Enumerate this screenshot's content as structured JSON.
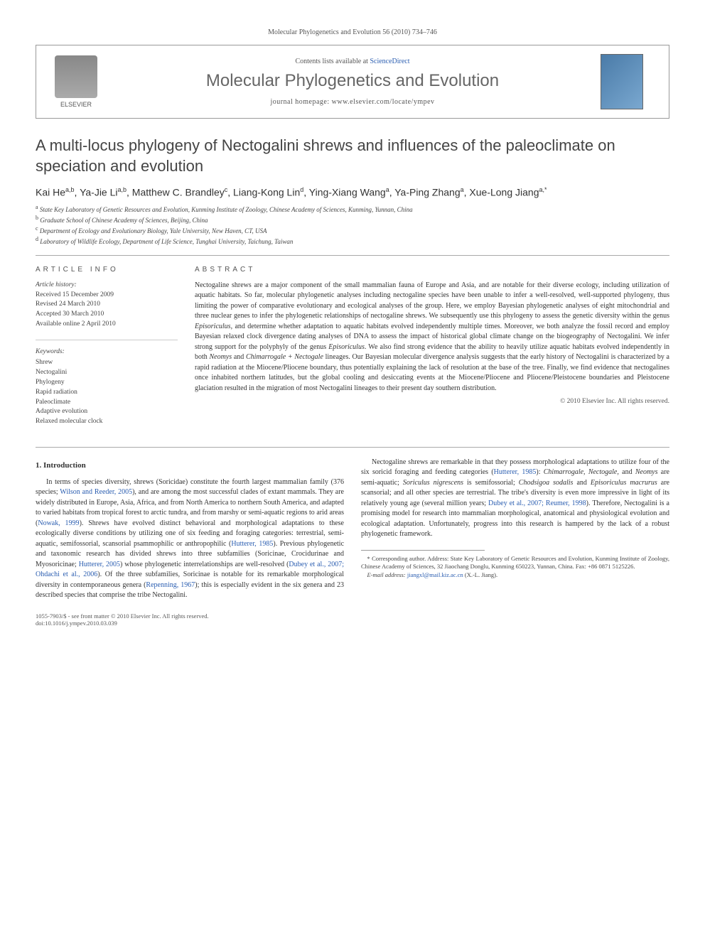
{
  "header": {
    "citation": "Molecular Phylogenetics and Evolution 56 (2010) 734–746"
  },
  "journalBox": {
    "publisher": "ELSEVIER",
    "contentsPrefix": "Contents lists available at ",
    "contentsLink": "ScienceDirect",
    "journalTitle": "Molecular Phylogenetics and Evolution",
    "homepage": "journal homepage: www.elsevier.com/locate/ympev"
  },
  "article": {
    "title": "A multi-locus phylogeny of Nectogalini shrews and influences of the paleoclimate on speciation and evolution",
    "authorsHtml": "Kai He<sup>a,b</sup>, Ya-Jie Li<sup>a,b</sup>, Matthew C. Brandley<sup>c</sup>, Liang-Kong Lin<sup>d</sup>, Ying-Xiang Wang<sup>a</sup>, Ya-Ping Zhang<sup>a</sup>, Xue-Long Jiang<sup>a,*</sup>",
    "affiliations": [
      {
        "sup": "a",
        "text": "State Key Laboratory of Genetic Resources and Evolution, Kunming Institute of Zoology, Chinese Academy of Sciences, Kunming, Yunnan, China"
      },
      {
        "sup": "b",
        "text": "Graduate School of Chinese Academy of Sciences, Beijing, China"
      },
      {
        "sup": "c",
        "text": "Department of Ecology and Evolutionary Biology, Yale University, New Haven, CT, USA"
      },
      {
        "sup": "d",
        "text": "Laboratory of Wildlife Ecology, Department of Life Science, Tunghai University, Taichung, Taiwan"
      }
    ]
  },
  "info": {
    "headLeft": "ARTICLE INFO",
    "headRight": "ABSTRACT",
    "historyLabel": "Article history:",
    "history": [
      "Received 15 December 2009",
      "Revised 24 March 2010",
      "Accepted 30 March 2010",
      "Available online 2 April 2010"
    ],
    "keywordsLabel": "Keywords:",
    "keywords": [
      "Shrew",
      "Nectogalini",
      "Phylogeny",
      "Rapid radiation",
      "Paleoclimate",
      "Adaptive evolution",
      "Relaxed molecular clock"
    ]
  },
  "abstract": {
    "text": "Nectogaline shrews are a major component of the small mammalian fauna of Europe and Asia, and are notable for their diverse ecology, including utilization of aquatic habitats. So far, molecular phylogenetic analyses including nectogaline species have been unable to infer a well-resolved, well-supported phylogeny, thus limiting the power of comparative evolutionary and ecological analyses of the group. Here, we employ Bayesian phylogenetic analyses of eight mitochondrial and three nuclear genes to infer the phylogenetic relationships of nectogaline shrews. We subsequently use this phylogeny to assess the genetic diversity within the genus <em>Episoriculus</em>, and determine whether adaptation to aquatic habitats evolved independently multiple times. Moreover, we both analyze the fossil record and employ Bayesian relaxed clock divergence dating analyses of DNA to assess the impact of historical global climate change on the biogeography of Nectogalini. We infer strong support for the polyphyly of the genus <em>Episoriculus</em>. We also find strong evidence that the ability to heavily utilize aquatic habitats evolved independently in both <em>Neomys</em> and <em>Chimarrogale + Nectogale</em> lineages. Our Bayesian molecular divergence analysis suggests that the early history of Nectogalini is characterized by a rapid radiation at the Miocene/Pliocene boundary, thus potentially explaining the lack of resolution at the base of the tree. Finally, we find evidence that nectogalines once inhabited northern latitudes, but the global cooling and desiccating events at the Miocene/Pliocene and Pliocene/Pleistocene boundaries and Pleistocene glaciation resulted in the migration of most Nectogalini lineages to their present day southern distribution.",
    "copyright": "© 2010 Elsevier Inc. All rights reserved."
  },
  "body": {
    "sectionHead": "1. Introduction",
    "p1a": "In terms of species diversity, shrews (Soricidae) constitute the fourth largest mammalian family (376 species; ",
    "p1link1": "Wilson and Reeder, 2005",
    "p1b": "), and are among the most successful clades of extant mammals. They are widely distributed in Europe, Asia, Africa, and from North America to northern South America, and adapted to varied habitats from tropical forest to arctic tundra, and from marshy or semi-aquatic regions to arid areas (",
    "p1link2": "Nowak, 1999",
    "p1c": "). Shrews have evolved distinct behavioral and morphological adaptations to these ecologically diverse conditions by utilizing one of six feeding and foraging categories: terrestrial, semi-aquatic, semifossorial, scansorial psammophilic or anthropophilic (",
    "p1link3": "Hutterer, 1985",
    "p1d": "). Previous phylogenetic and taxonomic research has divided shrews into ",
    "p1e": "three subfamilies (Soricinae, Crocidurinae and Myosoricinae; ",
    "p1link4": "Hutterer, 2005",
    "p1f": ") whose phylogenetic interrelationships are well-resolved (",
    "p1link5": "Dubey et al., 2007; Ohdachi et al., 2006",
    "p1g": "). Of the three subfamilies, Soricinae is notable for its remarkable morphological diversity in contemporaneous genera (",
    "p1link6": "Repenning, 1967",
    "p1h": "); this is especially evident in the six genera and 23 described species that comprise the tribe Nectogalini.",
    "p2a": "Nectogaline shrews are remarkable in that they possess morphological adaptations to utilize four of the six soricid foraging and feeding categories (",
    "p2link1": "Hutterer, 1985",
    "p2b": "): <em>Chimarrogale, Nectogale,</em> and <em>Neomys</em> are semi-aquatic; <em>Soriculus nigrescens</em> is semifossorial; <em>Chodsigoa sodalis</em> and <em>Episoriculus macrurus</em> are scansorial; and all other species are terrestrial. The tribe's diversity is even more impressive in light of its relatively young age (several million years; ",
    "p2link2": "Dubey et al., 2007; Reumer, 1998",
    "p2c": "). Therefore, Nectogalini is a promising model for research into mammalian morphological, anatomical and physiological evolution and ecological adaptation. Unfortunately, progress into this research is hampered by the lack of a robust phylogenetic framework."
  },
  "footnote": {
    "corr": "* Corresponding author. Address: State Key Laboratory of Genetic Resources and Evolution, Kunming Institute of Zoology, Chinese Academy of Sciences, 32 Jiaochang Donglu, Kunming 650223, Yunnan, China. Fax: +86 0871 5125226.",
    "emailLabel": "E-mail address:",
    "email": "jiangxl@mail.kiz.ac.cn",
    "emailSuffix": " (X.-L. Jiang)."
  },
  "bottom": {
    "left": "1055-7903/$ - see front matter © 2010 Elsevier Inc. All rights reserved.",
    "doi": "doi:10.1016/j.ympev.2010.03.039"
  },
  "colors": {
    "link": "#2a5db0",
    "text": "#333333",
    "muted": "#555555",
    "border": "#999999"
  }
}
